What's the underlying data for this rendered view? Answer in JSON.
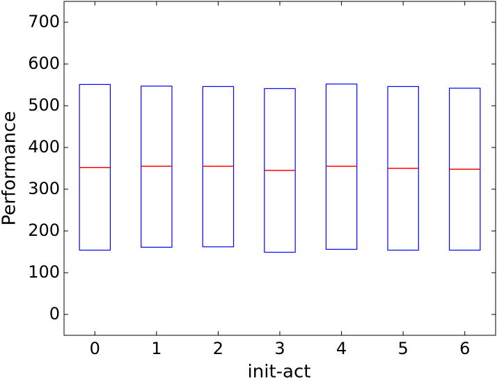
{
  "chart_data": {
    "type": "box",
    "x_label": "init-act",
    "y_label": "Performance",
    "categories": [
      "0",
      "1",
      "2",
      "3",
      "4",
      "5",
      "6"
    ],
    "boxes": [
      {
        "q1": 154,
        "median": 352,
        "q3": 551
      },
      {
        "q1": 161,
        "median": 355,
        "q3": 547
      },
      {
        "q1": 162,
        "median": 355,
        "q3": 546
      },
      {
        "q1": 149,
        "median": 345,
        "q3": 541
      },
      {
        "q1": 156,
        "median": 355,
        "q3": 552
      },
      {
        "q1": 154,
        "median": 350,
        "q3": 546
      },
      {
        "q1": 154,
        "median": 348,
        "q3": 542
      }
    ],
    "box_color": "#0000ff",
    "median_color": "#ff0000",
    "ylim": [
      -50,
      750
    ],
    "yticks": [
      0,
      100,
      200,
      300,
      400,
      500,
      600,
      700
    ]
  }
}
